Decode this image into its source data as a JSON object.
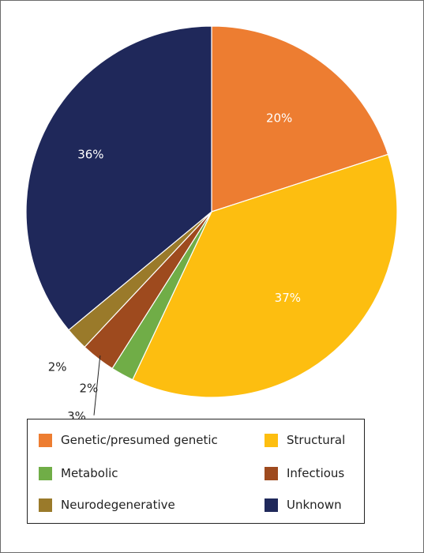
{
  "chart_data": {
    "type": "pie",
    "title": "",
    "slices": [
      {
        "label": "Genetic/presumed genetic",
        "value": 20,
        "value_label": "20%",
        "color": "#ED7D31"
      },
      {
        "label": "Structural",
        "value": 37,
        "value_label": "37%",
        "color": "#FDBE10"
      },
      {
        "label": "Metabolic",
        "value": 2,
        "value_label": "2%",
        "color": "#70AD47"
      },
      {
        "label": "Infectious",
        "value": 3,
        "value_label": "3%",
        "color": "#9E4A1E"
      },
      {
        "label": "Neurodegenerative",
        "value": 2,
        "value_label": "2%",
        "color": "#9A7A2A"
      },
      {
        "label": "Unknown",
        "value": 36,
        "value_label": "36%",
        "color": "#1F285A"
      }
    ],
    "start": "12 o'clock",
    "direction": "clockwise",
    "legend_position": "bottom"
  },
  "legend": {
    "items": [
      {
        "label": "Genetic/presumed genetic",
        "color": "#ED7D31"
      },
      {
        "label": "Structural",
        "color": "#FDBE10"
      },
      {
        "label": "Metabolic",
        "color": "#70AD47"
      },
      {
        "label": "Infectious",
        "color": "#9E4A1E"
      },
      {
        "label": "Neurodegenerative",
        "color": "#9A7A2A"
      },
      {
        "label": "Unknown",
        "color": "#1F285A"
      }
    ]
  }
}
